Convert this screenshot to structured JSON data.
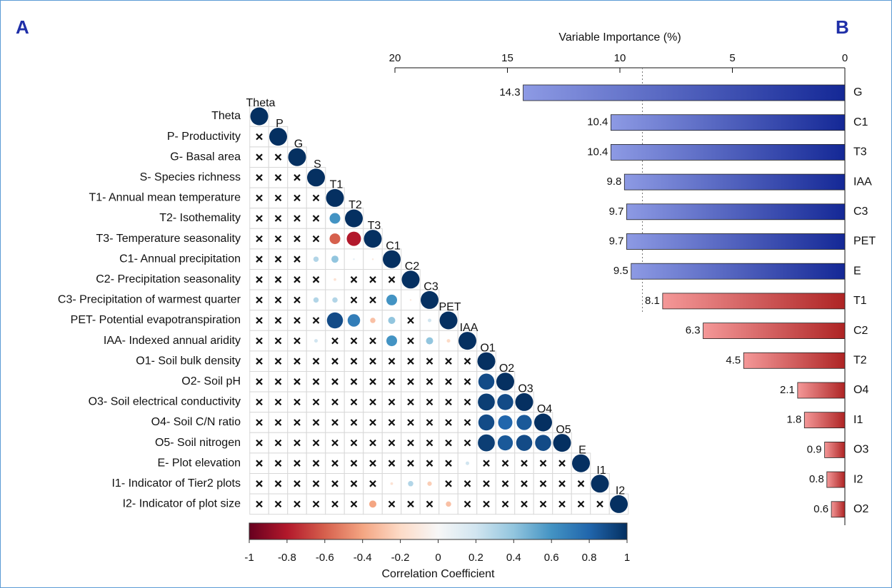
{
  "chart_data": [
    {
      "type": "correlation",
      "panel_label": "A",
      "row_labels": [
        "Theta",
        "P- Productivity",
        "G- Basal area",
        "S- Species richness",
        "T1- Annual mean temperature",
        "T2- Isothemality",
        "T3- Temperature seasonality",
        "C1- Annual precipitation",
        "C2- Precipitation seasonality",
        "C3- Precipitation of warmest quarter",
        "PET- Potential evapotranspiration",
        "IAA- Indexed annual aridity",
        "O1- Soil bulk density",
        "O2- Soil pH",
        "O3- Soil electrical conductivity",
        "O4- Soil C/N ratio",
        "O5- Soil nitrogen",
        "E- Plot elevation",
        "I1- Indicator of Tier2 plots",
        "I2- Indicator of plot size"
      ],
      "column_labels": [
        "Theta",
        "P",
        "G",
        "S",
        "T1",
        "T2",
        "T3",
        "C1",
        "C2",
        "C3",
        "PET",
        "IAA",
        "O1",
        "O2",
        "O3",
        "O4",
        "O5",
        "E",
        "I1",
        "I2"
      ],
      "values": [
        [
          1
        ],
        [
          null,
          1
        ],
        [
          null,
          null,
          1
        ],
        [
          null,
          null,
          null,
          1
        ],
        [
          null,
          null,
          null,
          null,
          1
        ],
        [
          null,
          null,
          null,
          null,
          0.6,
          1
        ],
        [
          null,
          null,
          null,
          null,
          -0.6,
          -0.8,
          1
        ],
        [
          null,
          null,
          null,
          0.3,
          0.4,
          0.1,
          -0.1,
          1
        ],
        [
          null,
          null,
          null,
          null,
          -0.15,
          null,
          null,
          null,
          1
        ],
        [
          null,
          null,
          null,
          0.3,
          0.3,
          null,
          null,
          0.6,
          -0.1,
          1
        ],
        [
          null,
          null,
          null,
          null,
          0.9,
          0.7,
          -0.3,
          0.4,
          null,
          0.2,
          1
        ],
        [
          null,
          null,
          null,
          0.2,
          null,
          null,
          null,
          0.6,
          null,
          0.4,
          -0.2,
          1
        ],
        [
          null,
          null,
          null,
          null,
          null,
          null,
          null,
          null,
          null,
          null,
          null,
          null,
          1
        ],
        [
          null,
          null,
          null,
          null,
          null,
          null,
          null,
          null,
          null,
          null,
          null,
          null,
          0.9,
          1
        ],
        [
          null,
          null,
          null,
          null,
          null,
          null,
          null,
          null,
          null,
          null,
          null,
          null,
          0.95,
          0.9,
          1
        ],
        [
          null,
          null,
          null,
          null,
          null,
          null,
          null,
          null,
          null,
          null,
          null,
          null,
          0.9,
          0.8,
          0.85,
          1
        ],
        [
          null,
          null,
          null,
          null,
          null,
          null,
          null,
          null,
          null,
          null,
          null,
          null,
          0.95,
          0.85,
          0.9,
          0.9,
          1
        ],
        [
          null,
          null,
          null,
          null,
          null,
          null,
          null,
          null,
          null,
          null,
          null,
          0.2,
          null,
          null,
          null,
          null,
          null,
          1
        ],
        [
          null,
          null,
          null,
          null,
          null,
          null,
          null,
          -0.15,
          0.3,
          -0.25,
          null,
          null,
          null,
          null,
          null,
          null,
          null,
          null,
          1
        ],
        [
          null,
          null,
          null,
          null,
          null,
          null,
          -0.4,
          null,
          null,
          null,
          -0.3,
          null,
          null,
          null,
          null,
          null,
          null,
          null,
          null,
          1
        ]
      ],
      "colorscale": [
        "#67001f",
        "#b2182b",
        "#d6604d",
        "#f4a582",
        "#fddbc7",
        "#f7f7f7",
        "#d1e5f0",
        "#92c5de",
        "#4393c3",
        "#2166ac",
        "#053061"
      ],
      "colorbar": {
        "title": "Correlation Coefficient",
        "lim": [
          -1,
          1
        ],
        "ticks": [
          -1,
          -0.8,
          -0.6,
          -0.4,
          -0.2,
          0,
          0.2,
          0.4,
          0.6,
          0.8,
          1
        ]
      }
    },
    {
      "type": "barh",
      "panel_label": "B",
      "x_label": "Variable Importance (%)",
      "categories": [
        "G",
        "C1",
        "T3",
        "IAA",
        "C3",
        "PET",
        "E",
        "T1",
        "C2",
        "T2",
        "O4",
        "I1",
        "O3",
        "I2",
        "O2"
      ],
      "values": [
        14.3,
        10.4,
        10.4,
        9.8,
        9.7,
        9.7,
        9.5,
        8.1,
        6.3,
        4.5,
        2.1,
        1.8,
        0.9,
        0.8,
        0.6
      ],
      "colors": [
        "#1a35c8",
        "#1a35c8",
        "#1a35c8",
        "#1a35c8",
        "#1a35c8",
        "#1a35c8",
        "#1a35c8",
        "#e83030",
        "#e83030",
        "#e83030",
        "#e83030",
        "#e83030",
        "#e83030",
        "#e83030",
        "#e83030"
      ],
      "xlim": [
        20,
        0
      ],
      "xticks": [
        20,
        15,
        10,
        5,
        0
      ],
      "reference_line": 9
    }
  ]
}
